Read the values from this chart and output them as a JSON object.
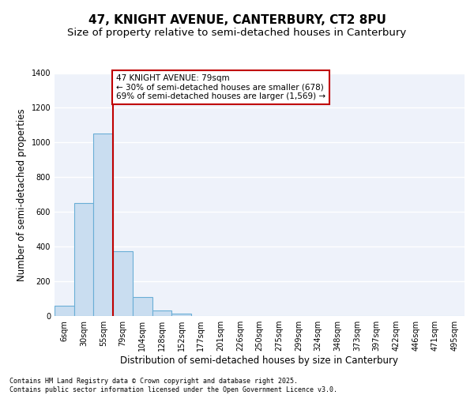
{
  "title1": "47, KNIGHT AVENUE, CANTERBURY, CT2 8PU",
  "title2": "Size of property relative to semi-detached houses in Canterbury",
  "xlabel": "Distribution of semi-detached houses by size in Canterbury",
  "ylabel": "Number of semi-detached properties",
  "categories": [
    "6sqm",
    "30sqm",
    "55sqm",
    "79sqm",
    "104sqm",
    "128sqm",
    "152sqm",
    "177sqm",
    "201sqm",
    "226sqm",
    "250sqm",
    "275sqm",
    "299sqm",
    "324sqm",
    "348sqm",
    "373sqm",
    "397sqm",
    "422sqm",
    "446sqm",
    "471sqm",
    "495sqm"
  ],
  "values": [
    60,
    650,
    1050,
    375,
    110,
    30,
    12,
    2,
    0,
    0,
    0,
    0,
    0,
    0,
    0,
    0,
    0,
    0,
    0,
    0,
    0
  ],
  "bar_color": "#c9ddf0",
  "bar_edge_color": "#6aaed6",
  "vline_color": "#c00000",
  "annotation_text": "47 KNIGHT AVENUE: 79sqm\n← 30% of semi-detached houses are smaller (678)\n69% of semi-detached houses are larger (1,569) →",
  "annotation_box_color": "#ffffff",
  "annotation_box_edge": "#c00000",
  "ylim": [
    0,
    1400
  ],
  "yticks": [
    0,
    200,
    400,
    600,
    800,
    1000,
    1200,
    1400
  ],
  "bg_color": "#eef2fa",
  "grid_color": "#ffffff",
  "footer_text": "Contains HM Land Registry data © Crown copyright and database right 2025.\nContains public sector information licensed under the Open Government Licence v3.0.",
  "title_fontsize": 11,
  "subtitle_fontsize": 9.5,
  "axis_label_fontsize": 8.5,
  "tick_fontsize": 7,
  "annotation_fontsize": 7.5,
  "footer_fontsize": 6
}
